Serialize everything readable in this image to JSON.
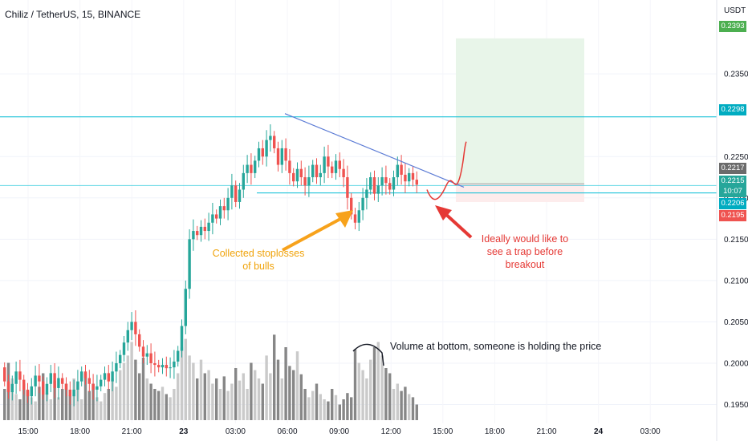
{
  "header": {
    "title": "Chiliz / TetherUS, 15, BINANCE",
    "currency": "USDT"
  },
  "annotations": {
    "stoploss": "Collected stoplosses of bulls",
    "trap": "Ideally would like to see a trap before breakout",
    "volume": "Volume at bottom, someone is holding the price"
  },
  "price_tags": {
    "target": "0.2393",
    "resistance": "0.2298",
    "current": "0.2217",
    "last": "0.2215",
    "countdown": "10:07",
    "support": "0.2206",
    "stop": "0.2195"
  },
  "colors": {
    "up": "#26a69a",
    "down": "#ef5350",
    "trendline": "#5b7bd5",
    "level": "#00bcd4",
    "target_zone": "#e8f5e9",
    "stop_zone": "#fdecec",
    "arrow_orange": "#f7a21b",
    "arrow_red": "#e53935"
  },
  "chart_data": {
    "type": "candlestick",
    "title": "Chiliz / TetherUS, 15, BINANCE",
    "x_ticks": [
      "15:00",
      "18:00",
      "21:00",
      "23",
      "03:00",
      "06:00",
      "09:00",
      "12:00",
      "15:00",
      "18:00",
      "21:00",
      "24",
      "03:00"
    ],
    "y_ticks": [
      0.195,
      0.2,
      0.205,
      0.21,
      0.215,
      0.22,
      0.225,
      0.235
    ],
    "ylim": [
      0.1935,
      0.242
    ],
    "levels": {
      "resistance": 0.2298,
      "support": 0.2206
    },
    "trendline": {
      "from": 0.2302,
      "to": 0.2213
    },
    "position": {
      "entry": 0.2217,
      "target": 0.2393,
      "stop": 0.2195
    },
    "candles": [
      [
        0.1995,
        0.1978
      ],
      [
        0.1978,
        0.1965
      ],
      [
        0.1965,
        0.1975
      ],
      [
        0.1975,
        0.199
      ],
      [
        0.199,
        0.198
      ],
      [
        0.198,
        0.1968
      ],
      [
        0.1968,
        0.196
      ],
      [
        0.196,
        0.1972
      ],
      [
        0.1972,
        0.1985
      ],
      [
        0.1985,
        0.1978
      ],
      [
        0.1978,
        0.1962
      ],
      [
        0.1962,
        0.1975
      ],
      [
        0.1975,
        0.1988
      ],
      [
        0.1988,
        0.197
      ],
      [
        0.197,
        0.1982
      ],
      [
        0.1982,
        0.1975
      ],
      [
        0.1975,
        0.1968
      ],
      [
        0.1968,
        0.196
      ],
      [
        0.196,
        0.1968
      ],
      [
        0.1968,
        0.1978
      ],
      [
        0.1978,
        0.199
      ],
      [
        0.199,
        0.1982
      ],
      [
        0.1982,
        0.1975
      ],
      [
        0.1975,
        0.1968
      ],
      [
        0.1968,
        0.1972
      ],
      [
        0.1972,
        0.198
      ],
      [
        0.198,
        0.1988
      ],
      [
        0.1988,
        0.1978
      ],
      [
        0.1978,
        0.199
      ],
      [
        0.199,
        0.2
      ],
      [
        0.2,
        0.201
      ],
      [
        0.201,
        0.2025
      ],
      [
        0.2025,
        0.204
      ],
      [
        0.204,
        0.205
      ],
      [
        0.205,
        0.2035
      ],
      [
        0.2035,
        0.202
      ],
      [
        0.202,
        0.2008
      ],
      [
        0.2008,
        0.2012
      ],
      [
        0.2012,
        0.2
      ],
      [
        0.2,
        0.1998
      ],
      [
        0.1998,
        0.1995
      ],
      [
        0.1995,
        0.1998
      ],
      [
        0.1998,
        0.1994
      ],
      [
        0.1994,
        0.1995
      ],
      [
        0.1995,
        0.2002
      ],
      [
        0.2002,
        0.2015
      ],
      [
        0.2015,
        0.2045
      ],
      [
        0.2045,
        0.209
      ],
      [
        0.209,
        0.215
      ],
      [
        0.215,
        0.216
      ],
      [
        0.216,
        0.2155
      ],
      [
        0.2155,
        0.2165
      ],
      [
        0.2165,
        0.216
      ],
      [
        0.216,
        0.217
      ],
      [
        0.217,
        0.218
      ],
      [
        0.218,
        0.2175
      ],
      [
        0.2175,
        0.219
      ],
      [
        0.219,
        0.2185
      ],
      [
        0.2185,
        0.22
      ],
      [
        0.22,
        0.2215
      ],
      [
        0.2215,
        0.2195
      ],
      [
        0.2195,
        0.221
      ],
      [
        0.221,
        0.223
      ],
      [
        0.223,
        0.224
      ],
      [
        0.224,
        0.223
      ],
      [
        0.223,
        0.2245
      ],
      [
        0.2245,
        0.226
      ],
      [
        0.226,
        0.225
      ],
      [
        0.225,
        0.227
      ],
      [
        0.227,
        0.2275
      ],
      [
        0.2275,
        0.226
      ],
      [
        0.226,
        0.224
      ],
      [
        0.224,
        0.226
      ],
      [
        0.226,
        0.2245
      ],
      [
        0.2245,
        0.223
      ],
      [
        0.223,
        0.222
      ],
      [
        0.222,
        0.2235
      ],
      [
        0.2235,
        0.2225
      ],
      [
        0.2225,
        0.2215
      ],
      [
        0.2215,
        0.2225
      ],
      [
        0.2225,
        0.224
      ],
      [
        0.224,
        0.2225
      ],
      [
        0.2225,
        0.223
      ],
      [
        0.223,
        0.225
      ],
      [
        0.225,
        0.2238
      ],
      [
        0.2238,
        0.223
      ],
      [
        0.223,
        0.2245
      ],
      [
        0.2245,
        0.2235
      ],
      [
        0.2235,
        0.2225
      ],
      [
        0.2225,
        0.22
      ],
      [
        0.22,
        0.218
      ],
      [
        0.218,
        0.217
      ],
      [
        0.217,
        0.2185
      ],
      [
        0.2185,
        0.22
      ],
      [
        0.22,
        0.221
      ],
      [
        0.221,
        0.2225
      ],
      [
        0.2225,
        0.2205
      ],
      [
        0.2205,
        0.2215
      ],
      [
        0.2215,
        0.2225
      ],
      [
        0.2225,
        0.2218
      ],
      [
        0.2218,
        0.221
      ],
      [
        0.221,
        0.2225
      ],
      [
        0.2225,
        0.224
      ],
      [
        0.224,
        0.2228
      ],
      [
        0.2228,
        0.222
      ],
      [
        0.222,
        0.223
      ],
      [
        0.223,
        0.2222
      ],
      [
        0.2222,
        0.2216
      ]
    ],
    "volume": [
      0.3,
      0.55,
      0.4,
      0.25,
      0.2,
      0.35,
      0.28,
      0.22,
      0.18,
      0.32,
      0.45,
      0.26,
      0.2,
      0.38,
      0.22,
      0.3,
      0.35,
      0.24,
      0.4,
      0.3,
      0.2,
      0.45,
      0.28,
      0.35,
      0.22,
      0.18,
      0.26,
      0.3,
      0.4,
      0.32,
      0.48,
      0.55,
      0.62,
      0.75,
      0.58,
      0.45,
      0.6,
      0.4,
      0.35,
      0.3,
      0.28,
      0.32,
      0.25,
      0.22,
      0.3,
      0.45,
      0.7,
      0.78,
      0.62,
      0.55,
      0.4,
      0.58,
      0.45,
      0.48,
      0.35,
      0.4,
      0.3,
      0.42,
      0.28,
      0.35,
      0.5,
      0.38,
      0.45,
      0.3,
      0.55,
      0.48,
      0.4,
      0.35,
      0.62,
      0.45,
      0.82,
      0.58,
      0.4,
      0.7,
      0.52,
      0.48,
      0.66,
      0.44,
      0.3,
      0.22,
      0.28,
      0.35,
      0.25,
      0.2,
      0.18,
      0.3,
      0.24,
      0.15,
      0.2,
      0.26,
      0.22,
      0.68,
      0.55,
      0.48,
      0.4,
      0.58,
      0.7,
      0.75,
      0.62,
      0.5,
      0.45,
      0.3,
      0.35,
      0.28,
      0.32,
      0.25,
      0.22,
      0.15
    ]
  }
}
